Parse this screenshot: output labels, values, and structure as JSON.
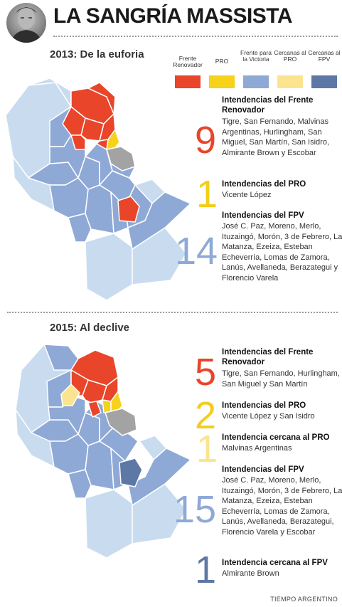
{
  "header": {
    "title": "LA SANGRÍA MASSISTA"
  },
  "legend": {
    "items": [
      {
        "label": "Frente Renovador",
        "color": "#e8452a"
      },
      {
        "label": "PRO",
        "color": "#f6d21b"
      },
      {
        "label": "Frente para la Victoria",
        "color": "#8fa9d6"
      },
      {
        "label": "Cercanas al PRO",
        "color": "#fbe48f"
      },
      {
        "label": "Cercanas al FPV",
        "color": "#5e78a6"
      }
    ]
  },
  "colors": {
    "fr": "#e8452a",
    "pro": "#f6d21b",
    "fpv": "#8fa9d6",
    "near_pro": "#fbe48f",
    "near_fpv": "#5e78a6",
    "outer": "#c9dcef",
    "gray": "#a3a3a3"
  },
  "sections": [
    {
      "title": "2013: De la euforia",
      "stats": [
        {
          "count": "9",
          "color": "#e8452a",
          "title": "Intendencias del Frente Renovador",
          "text": "Tigre, San Fernando, Malvinas Argentinas, Hurlingham, San Miguel, San Martín, San Isidro, Almirante Brown y Escobar"
        },
        {
          "count": "1",
          "color": "#f3cd1c",
          "title": "Intendencias del PRO",
          "text": "Vicente López"
        },
        {
          "count": "14",
          "color": "#8fa9d6",
          "title": "Intendencias del FPV",
          "text": "José C. Paz, Moreno, Merlo, Ituzaingó, Morón, 3 de Febrero, La Matanza, Ezeiza, Esteban Echeverría, Lomas de Zamora, Lanús, Avellaneda, Berazategui y Florencio Varela"
        }
      ]
    },
    {
      "title": "2015: Al declive",
      "stats": [
        {
          "count": "5",
          "color": "#e8452a",
          "title": "Intendencias del Frente Renovador",
          "text": "Tigre, San Fernando, Hurlingham, San Miguel y San Martín"
        },
        {
          "count": "2",
          "color": "#f3cd1c",
          "title": "Intendencias del PRO",
          "text": "Vicente López y San Isidro"
        },
        {
          "count": "1",
          "color": "#fbe48f",
          "title": "Intendencia cercana al PRO",
          "text": "Malvinas Argentinas"
        },
        {
          "count": "15",
          "color": "#8fa9d6",
          "title": "Intendencias del FPV",
          "text": "José C. Paz, Moreno, Merlo, Ituzaingó, Morón, 3 de Febrero, La Matanza, Ezeiza, Esteban Echeverría, Lomas de Zamora, Lanús, Avellaneda, Berazategui, Florencio Varela y Escobar"
        },
        {
          "count": "1",
          "color": "#5e78a6",
          "title": "Intendencia cercana al FPV",
          "text": "Almirante Brown"
        }
      ]
    }
  ],
  "credit": "TIEMPO ARGENTINO"
}
